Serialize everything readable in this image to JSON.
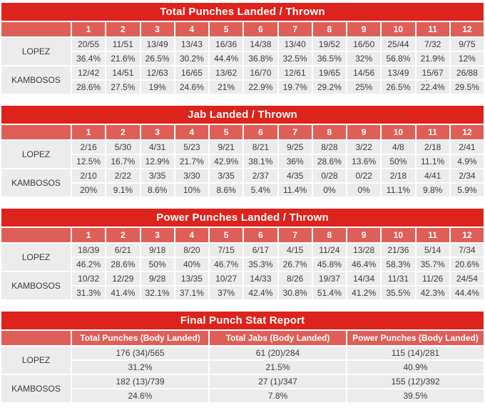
{
  "colors": {
    "title_bg": "#dc231c",
    "header_bg": "#de5f58",
    "cell_bg": "#ececec",
    "cell_text": "#3a3a3a",
    "header_text": "#ffffff",
    "page_bg": "#ffffff"
  },
  "chart_data": [
    {
      "type": "table",
      "title": "Total Punches Landed / Thrown",
      "columns": [
        "1",
        "2",
        "3",
        "4",
        "5",
        "6",
        "7",
        "8",
        "9",
        "10",
        "11",
        "12"
      ],
      "rows": [
        {
          "fighter": "LOPEZ",
          "landed_thrown": [
            "20/55",
            "11/51",
            "13/49",
            "13/43",
            "16/36",
            "14/38",
            "13/40",
            "19/52",
            "16/50",
            "25/44",
            "7/32",
            "9/75"
          ],
          "pct": [
            "36.4%",
            "21.6%",
            "26.5%",
            "30.2%",
            "44.4%",
            "36.8%",
            "32.5%",
            "36.5%",
            "32%",
            "56.8%",
            "21.9%",
            "12%"
          ]
        },
        {
          "fighter": "KAMBOSOS",
          "landed_thrown": [
            "12/42",
            "14/51",
            "12/63",
            "16/65",
            "13/62",
            "16/70",
            "12/61",
            "19/65",
            "14/56",
            "13/49",
            "15/67",
            "26/88"
          ],
          "pct": [
            "28.6%",
            "27.5%",
            "19%",
            "24.6%",
            "21%",
            "22.9%",
            "19.7%",
            "29.2%",
            "25%",
            "26.5%",
            "22.4%",
            "29.5%"
          ]
        }
      ]
    },
    {
      "type": "table",
      "title": "Jab Landed / Thrown",
      "columns": [
        "1",
        "2",
        "3",
        "4",
        "5",
        "6",
        "7",
        "8",
        "9",
        "10",
        "11",
        "12"
      ],
      "rows": [
        {
          "fighter": "LOPEZ",
          "landed_thrown": [
            "2/16",
            "5/30",
            "4/31",
            "5/23",
            "9/21",
            "8/21",
            "9/25",
            "8/28",
            "3/22",
            "4/8",
            "2/18",
            "2/41"
          ],
          "pct": [
            "12.5%",
            "16.7%",
            "12.9%",
            "21.7%",
            "42.9%",
            "38.1%",
            "36%",
            "28.6%",
            "13.6%",
            "50%",
            "11.1%",
            "4.9%"
          ]
        },
        {
          "fighter": "KAMBOSOS",
          "landed_thrown": [
            "2/10",
            "2/22",
            "3/35",
            "3/30",
            "3/35",
            "2/37",
            "4/35",
            "0/28",
            "0/22",
            "2/18",
            "4/41",
            "2/34"
          ],
          "pct": [
            "20%",
            "9.1%",
            "8.6%",
            "10%",
            "8.6%",
            "5.4%",
            "11.4%",
            "0%",
            "0%",
            "11.1%",
            "9.8%",
            "5.9%"
          ]
        }
      ]
    },
    {
      "type": "table",
      "title": "Power Punches Landed / Thrown",
      "columns": [
        "1",
        "2",
        "3",
        "4",
        "5",
        "6",
        "7",
        "8",
        "9",
        "10",
        "11",
        "12"
      ],
      "rows": [
        {
          "fighter": "LOPEZ",
          "landed_thrown": [
            "18/39",
            "6/21",
            "9/18",
            "8/20",
            "7/15",
            "6/17",
            "4/15",
            "11/24",
            "13/28",
            "21/36",
            "5/14",
            "7/34"
          ],
          "pct": [
            "46.2%",
            "28.6%",
            "50%",
            "40%",
            "46.7%",
            "35.3%",
            "26.7%",
            "45.8%",
            "46.4%",
            "58.3%",
            "35.7%",
            "20.6%"
          ]
        },
        {
          "fighter": "KAMBOSOS",
          "landed_thrown": [
            "10/32",
            "12/29",
            "9/28",
            "13/35",
            "10/27",
            "14/33",
            "8/26",
            "19/37",
            "14/34",
            "11/31",
            "11/26",
            "24/54"
          ],
          "pct": [
            "31.3%",
            "41.4%",
            "32.1%",
            "37.1%",
            "37%",
            "42.4%",
            "30.8%",
            "51.4%",
            "41.2%",
            "35.5%",
            "42.3%",
            "44.4%"
          ]
        }
      ]
    },
    {
      "type": "table",
      "title": "Final Punch Stat Report",
      "columns": [
        "Total Punches (Body Landed)",
        "Total Jabs (Body Landed)",
        "Power Punches (Body Landed)"
      ],
      "rows": [
        {
          "fighter": "LOPEZ",
          "landed_thrown": [
            "176 (34)/565",
            "61 (20)/284",
            "115 (14)/281"
          ],
          "pct": [
            "31.2%",
            "21.5%",
            "40.9%"
          ]
        },
        {
          "fighter": "KAMBOSOS",
          "landed_thrown": [
            "182 (13)/739",
            "27 (1)/347",
            "155 (12)/392"
          ],
          "pct": [
            "24.6%",
            "7.8%",
            "39.5%"
          ]
        }
      ]
    }
  ]
}
